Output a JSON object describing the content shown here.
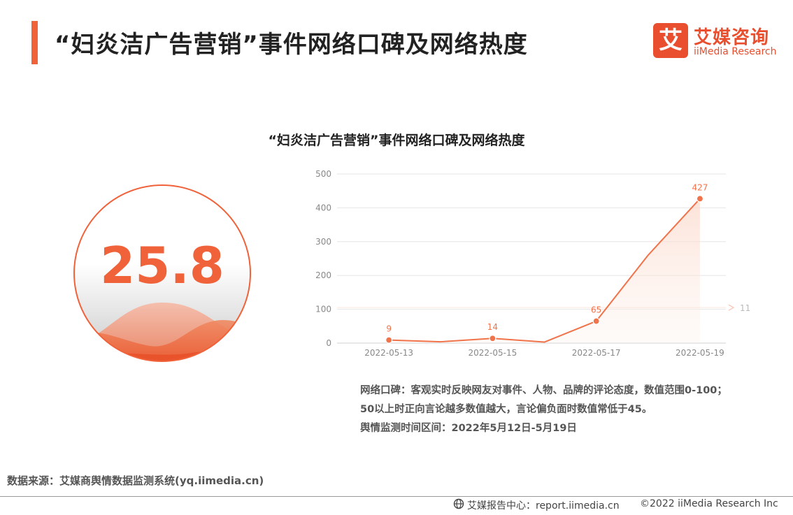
{
  "header": {
    "title": "“妇炎洁广告营销”事件网络口碑及网络热度",
    "logo_mark": "艾",
    "logo_cn": "艾媒咨询",
    "logo_en": "iiMedia Research"
  },
  "score": {
    "value": "25.8"
  },
  "chart_data": {
    "type": "line",
    "title": "“妇炎洁广告营销”事件网络口碑及网络热度",
    "x": [
      "2022-05-12",
      "2022-05-13",
      "2022-05-14",
      "2022-05-15",
      "2022-05-16",
      "2022-05-17",
      "2022-05-18",
      "2022-05-19"
    ],
    "x_tick_labels": [
      "2022-05-13",
      "2022-05-15",
      "2022-05-17",
      "2022-05-19"
    ],
    "series": [
      {
        "values": [
          null,
          9,
          4,
          14,
          3,
          65,
          260,
          427
        ]
      }
    ],
    "labeled_points": [
      {
        "x": "2022-05-13",
        "label": "9"
      },
      {
        "x": "2022-05-15",
        "label": "14"
      },
      {
        "x": "2022-05-17",
        "label": "65"
      },
      {
        "x": "2022-05-19",
        "label": "427"
      }
    ],
    "yticks": [
      0,
      100,
      200,
      300,
      400,
      500
    ],
    "ylim": [
      0,
      500
    ],
    "grid": true,
    "marker_value_label": "11",
    "line_color": "#f0734a"
  },
  "notes": {
    "line1": "网络口碑：客观实时反映网友对事件、人物、品牌的评论态度，数值范围0-100；",
    "line2": "50以上时正向言论越多数值越大，言论偏负面时数值常低于45。",
    "line3": "舆情监测时间区间：2022年5月12日-5月19日"
  },
  "footer": {
    "source": "数据来源：艾媒商舆情数据监测系统(yq.iimedia.cn)",
    "report": "艾媒报告中心：report.iimedia.cn",
    "copyright": "©2022  iiMedia Research  Inc"
  },
  "colors": {
    "accent": "#f0623a",
    "brand": "#e94e2e"
  }
}
